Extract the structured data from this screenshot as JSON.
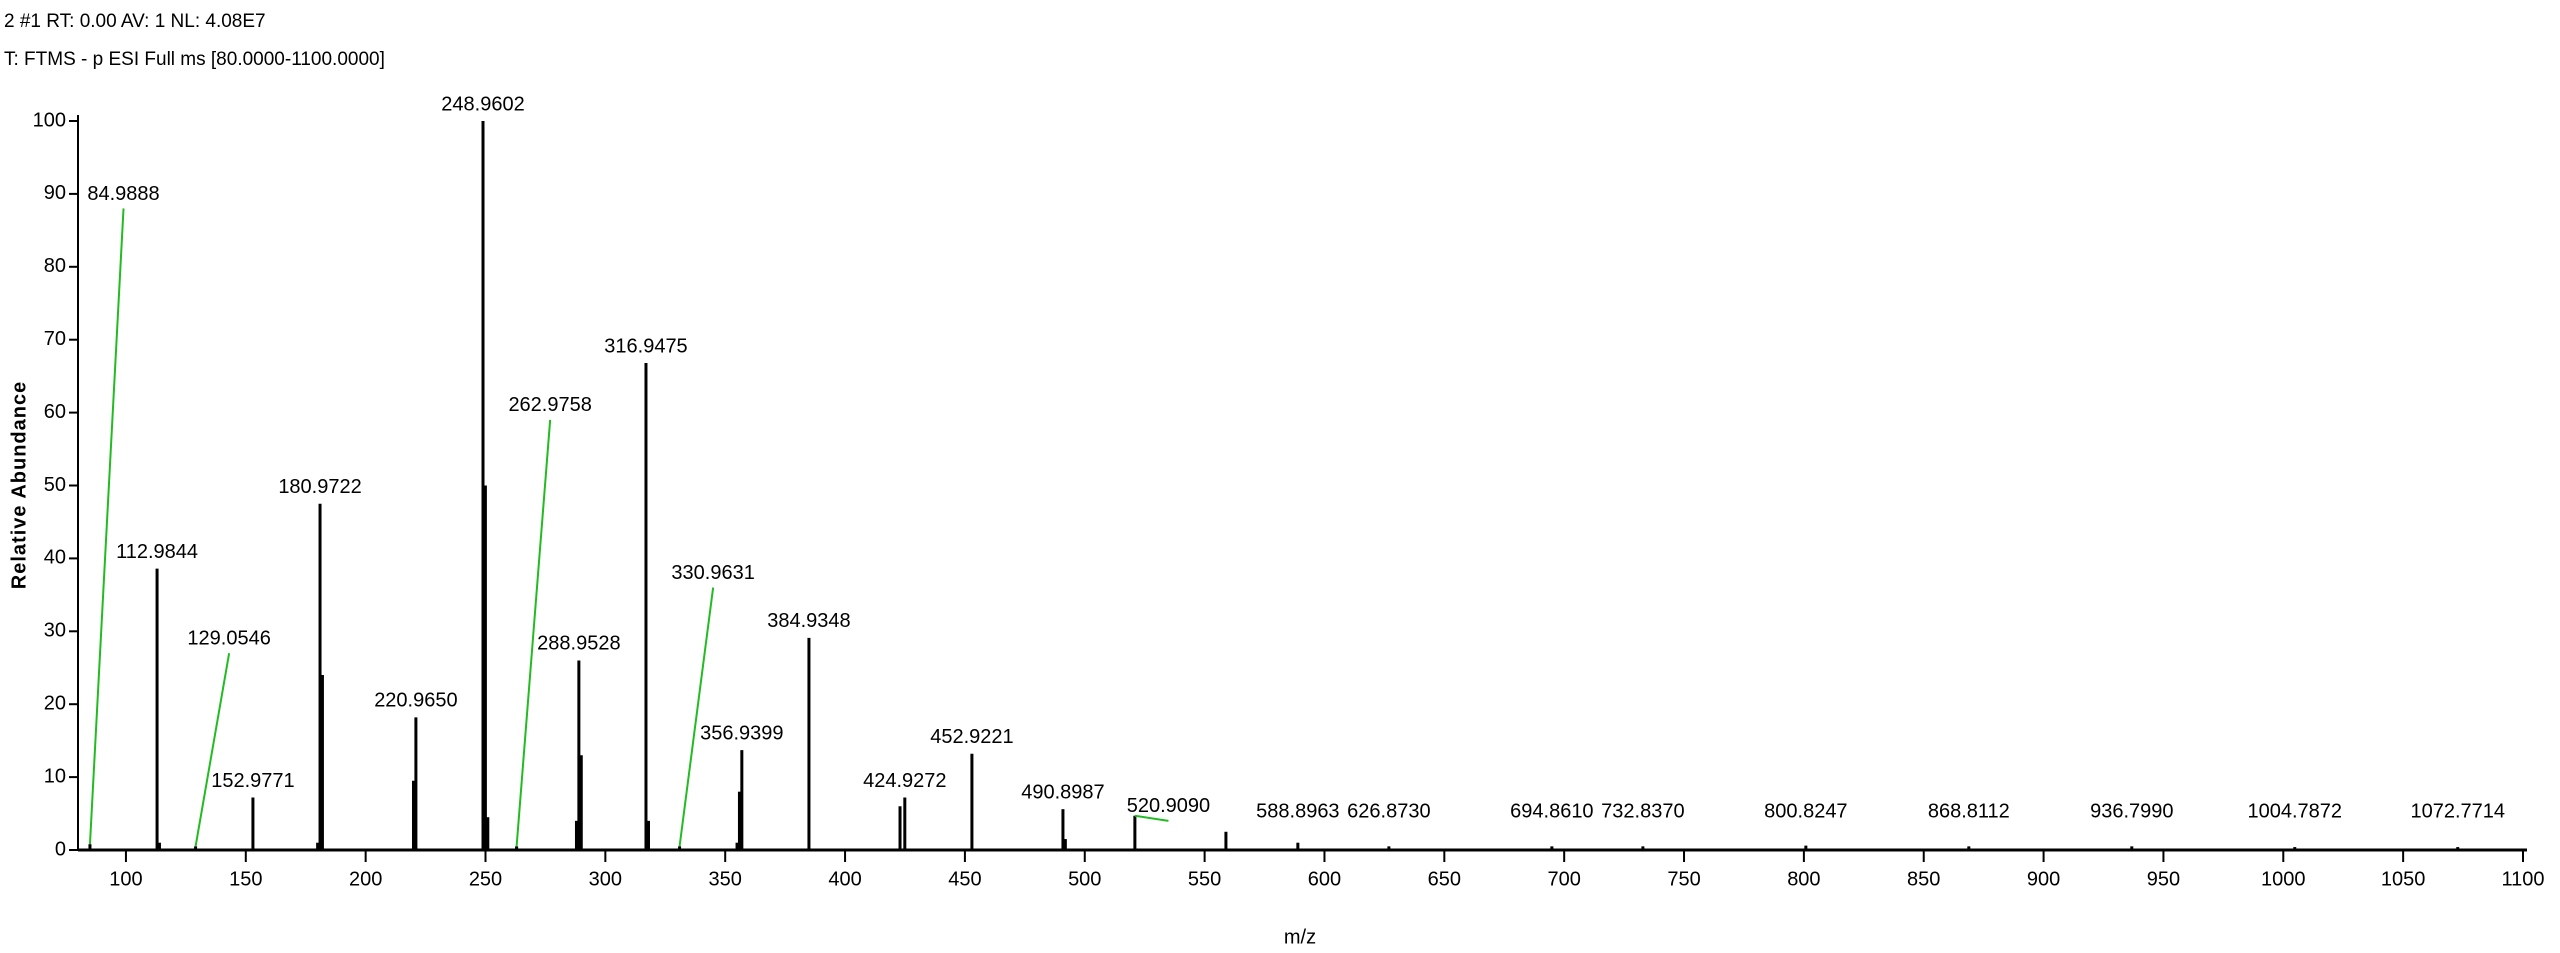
{
  "chart_data": {
    "type": "stem",
    "header": [
      "2 #1  RT: 0.00  AV: 1  NL: 4.08E7",
      "T: FTMS - p ESI Full ms [80.0000-1100.0000]"
    ],
    "ylabel": "Relative Abundance",
    "xlabel": "m/z",
    "color": "#000000",
    "leader_color": "#22bb22",
    "xlim": [
      80,
      1100
    ],
    "ylim": [
      0,
      100
    ],
    "xticks": [
      100,
      150,
      200,
      250,
      300,
      350,
      400,
      450,
      500,
      550,
      600,
      650,
      700,
      750,
      800,
      850,
      900,
      950,
      1000,
      1050,
      1100
    ],
    "yticks": [
      0,
      10,
      20,
      30,
      40,
      50,
      60,
      70,
      80,
      90,
      100
    ],
    "x": [
      84.9888,
      112.9844,
      129.0546,
      152.9771,
      180.9722,
      220.965,
      248.9602,
      262.9758,
      288.9528,
      316.9475,
      330.9631,
      356.9399,
      384.9348,
      424.9272,
      452.9221,
      490.8987,
      520.909,
      588.8963,
      626.873,
      694.861,
      732.837,
      800.8247,
      868.8112,
      936.799,
      1004.7872,
      1072.7714,
      249.96,
      181.97,
      219.96,
      289.95,
      355.94,
      422.93,
      250.96,
      318.0,
      558.89,
      287.95,
      113.98,
      179.97,
      354.94,
      491.9
    ],
    "values": [
      0.8,
      38.6,
      0.5,
      7.2,
      47.5,
      18.2,
      100,
      0.5,
      26,
      66.8,
      0.5,
      13.7,
      29.1,
      7.2,
      13.2,
      5.6,
      4.7,
      1,
      0.5,
      0.5,
      0.5,
      0.6,
      0.5,
      0.5,
      0.4,
      0.4,
      50,
      24,
      9.5,
      13,
      8,
      6,
      4.5,
      4,
      2.5,
      4,
      1,
      1,
      1,
      1.5
    ],
    "labels": [
      "84.9888",
      "112.9844",
      "129.0546",
      "152.9771",
      "180.9722",
      "220.9650",
      "248.9602",
      "262.9758",
      "288.9528",
      "316.9475",
      "330.9631",
      "356.9399",
      "384.9348",
      "424.9272",
      "452.9221",
      "490.8987",
      "520.9090",
      "588.8963",
      "626.8730",
      "694.8610",
      "732.8370",
      "800.8247",
      "868.8112",
      "936.7990",
      "1004.7872",
      "1072.7714",
      null,
      null,
      null,
      null,
      null,
      null,
      null,
      null,
      null,
      null,
      null,
      null,
      null,
      null
    ]
  }
}
